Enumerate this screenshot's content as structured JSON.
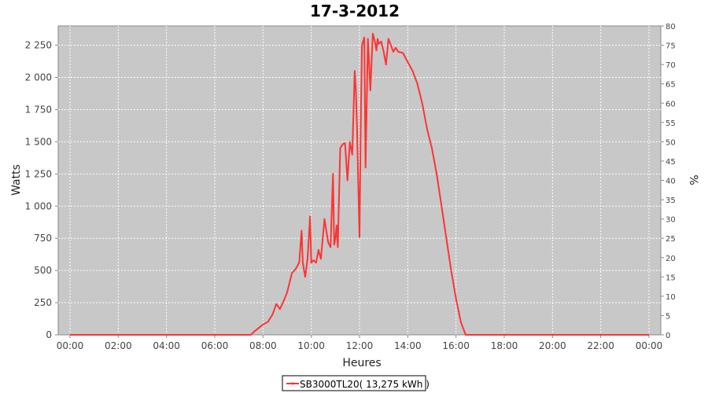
{
  "chart_data": {
    "type": "line",
    "title": "17-3-2012",
    "xlabel": "Heures",
    "ylabel": "Watts",
    "y2label": "%",
    "xlim": [
      0,
      24
    ],
    "ylim": [
      0,
      2400
    ],
    "y2lim": [
      0,
      80
    ],
    "x_ticks": [
      "00:00",
      "02:00",
      "04:00",
      "06:00",
      "08:00",
      "10:00",
      "12:00",
      "14:00",
      "16:00",
      "18:00",
      "20:00",
      "22:00",
      "00:00"
    ],
    "y_ticks": [
      "0",
      "250",
      "500",
      "750",
      "1 000",
      "1 250",
      "1 500",
      "1 750",
      "2 000",
      "2 250"
    ],
    "y_tick_values": [
      0,
      250,
      500,
      750,
      1000,
      1250,
      1500,
      1750,
      2000,
      2250
    ],
    "y2_ticks": [
      "0",
      "5",
      "10",
      "15",
      "20",
      "25",
      "30",
      "35",
      "40",
      "45",
      "50",
      "55",
      "60",
      "65",
      "70",
      "75",
      "80"
    ],
    "grid": true,
    "legend_position": "bottom-center",
    "colors": {
      "series": "#ff3333",
      "plot_bg": "#c8c8c8",
      "grid": "#ffffff"
    },
    "series": [
      {
        "name": "SB3000TL20( 13,275 kWh )",
        "x": [
          0,
          7.5,
          7.6,
          7.8,
          8.0,
          8.2,
          8.4,
          8.55,
          8.7,
          8.85,
          9.0,
          9.2,
          9.35,
          9.5,
          9.6,
          9.65,
          9.75,
          9.85,
          9.95,
          10.0,
          10.1,
          10.2,
          10.3,
          10.4,
          10.55,
          10.7,
          10.8,
          10.9,
          10.95,
          11.0,
          11.05,
          11.1,
          11.2,
          11.3,
          11.4,
          11.5,
          11.6,
          11.7,
          11.8,
          11.85,
          11.9,
          11.95,
          12.0,
          12.05,
          12.1,
          12.2,
          12.25,
          12.35,
          12.45,
          12.55,
          12.65,
          12.7,
          12.75,
          12.8,
          12.9,
          13.0,
          13.1,
          13.2,
          13.3,
          13.4,
          13.5,
          13.6,
          13.8,
          14.0,
          14.2,
          14.4,
          14.6,
          14.8,
          15.0,
          15.2,
          15.4,
          15.6,
          15.8,
          16.0,
          16.2,
          16.4,
          16.6,
          16.8,
          17.0,
          17.2,
          17.4,
          17.6,
          17.8,
          18.0,
          18.2,
          18.4,
          18.55,
          18.7,
          18.8,
          18.9,
          19.0,
          24.0
        ],
        "values": [
          0,
          0,
          20,
          50,
          80,
          100,
          160,
          240,
          200,
          260,
          330,
          480,
          510,
          560,
          810,
          560,
          450,
          600,
          920,
          560,
          580,
          560,
          660,
          590,
          900,
          720,
          680,
          1250,
          700,
          750,
          850,
          680,
          1450,
          1480,
          1490,
          1200,
          1500,
          1400,
          2050,
          1900,
          1600,
          1150,
          760,
          1600,
          2250,
          2310,
          1300,
          2300,
          1900,
          2340,
          2270,
          2210,
          2300,
          2260,
          2280,
          2200,
          2100,
          2300,
          2250,
          2200,
          2230,
          2200,
          2190,
          2120,
          2050,
          1950,
          1800,
          1600,
          1450,
          1250,
          1000,
          750,
          500,
          280,
          100,
          0,
          0,
          0,
          0,
          0,
          0,
          0,
          0,
          0,
          0,
          0,
          0,
          0,
          0,
          0,
          0,
          0
        ]
      }
    ]
  }
}
